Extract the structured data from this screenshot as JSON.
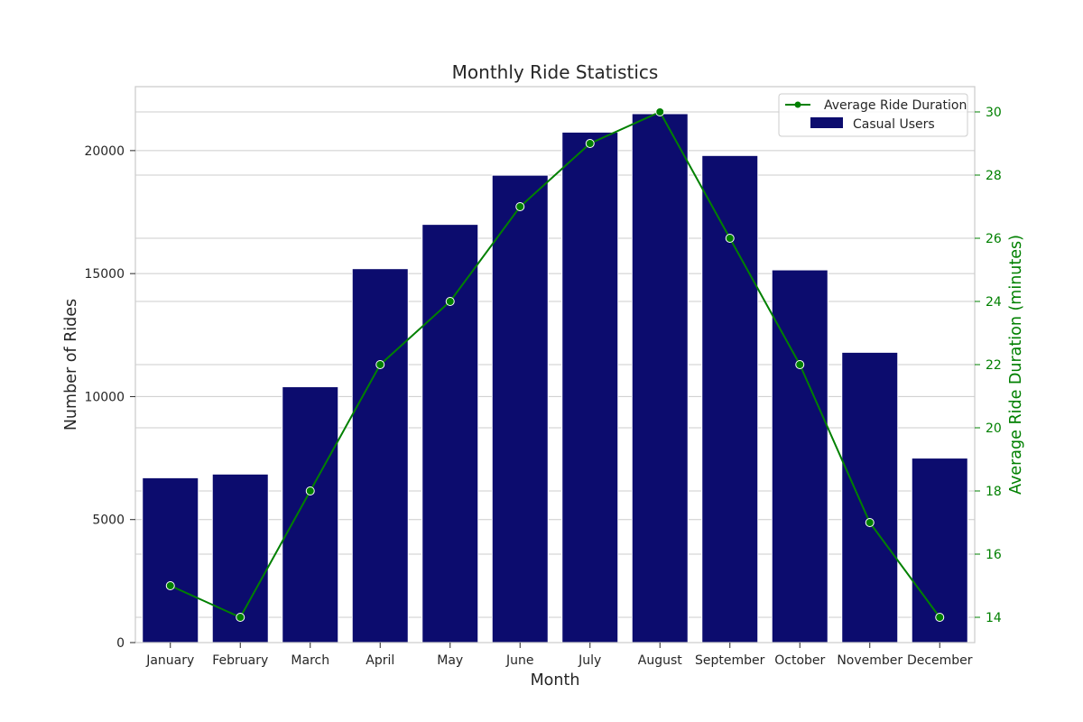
{
  "chart_data": {
    "type": "bar",
    "title": "Monthly Ride Statistics",
    "xlabel": "Month",
    "ylabel": "Number of Rides",
    "y2label": "Average Ride Duration (minutes)",
    "categories": [
      "January",
      "February",
      "March",
      "April",
      "May",
      "June",
      "July",
      "August",
      "September",
      "October",
      "November",
      "December"
    ],
    "series": [
      {
        "name": "Casual Users",
        "type": "bar",
        "axis": "left",
        "color": "#0c0c6e",
        "values": [
          6700,
          6850,
          10400,
          15200,
          17000,
          19000,
          20750,
          21500,
          19800,
          15150,
          11800,
          7500
        ]
      },
      {
        "name": "Average Ride Duration",
        "type": "line",
        "axis": "right",
        "color": "#008000",
        "values": [
          15,
          14,
          18,
          22,
          24,
          27,
          29,
          30,
          26,
          22,
          17,
          14
        ]
      }
    ],
    "ylim": [
      0,
      22600
    ],
    "y2lim": [
      13.2,
      30.8
    ],
    "yticks": [
      0,
      5000,
      10000,
      15000,
      20000
    ],
    "y2ticks": [
      14,
      16,
      18,
      20,
      22,
      24,
      26,
      28,
      30
    ],
    "grid": true,
    "legend": "top-right",
    "y2_color": "#008000"
  }
}
